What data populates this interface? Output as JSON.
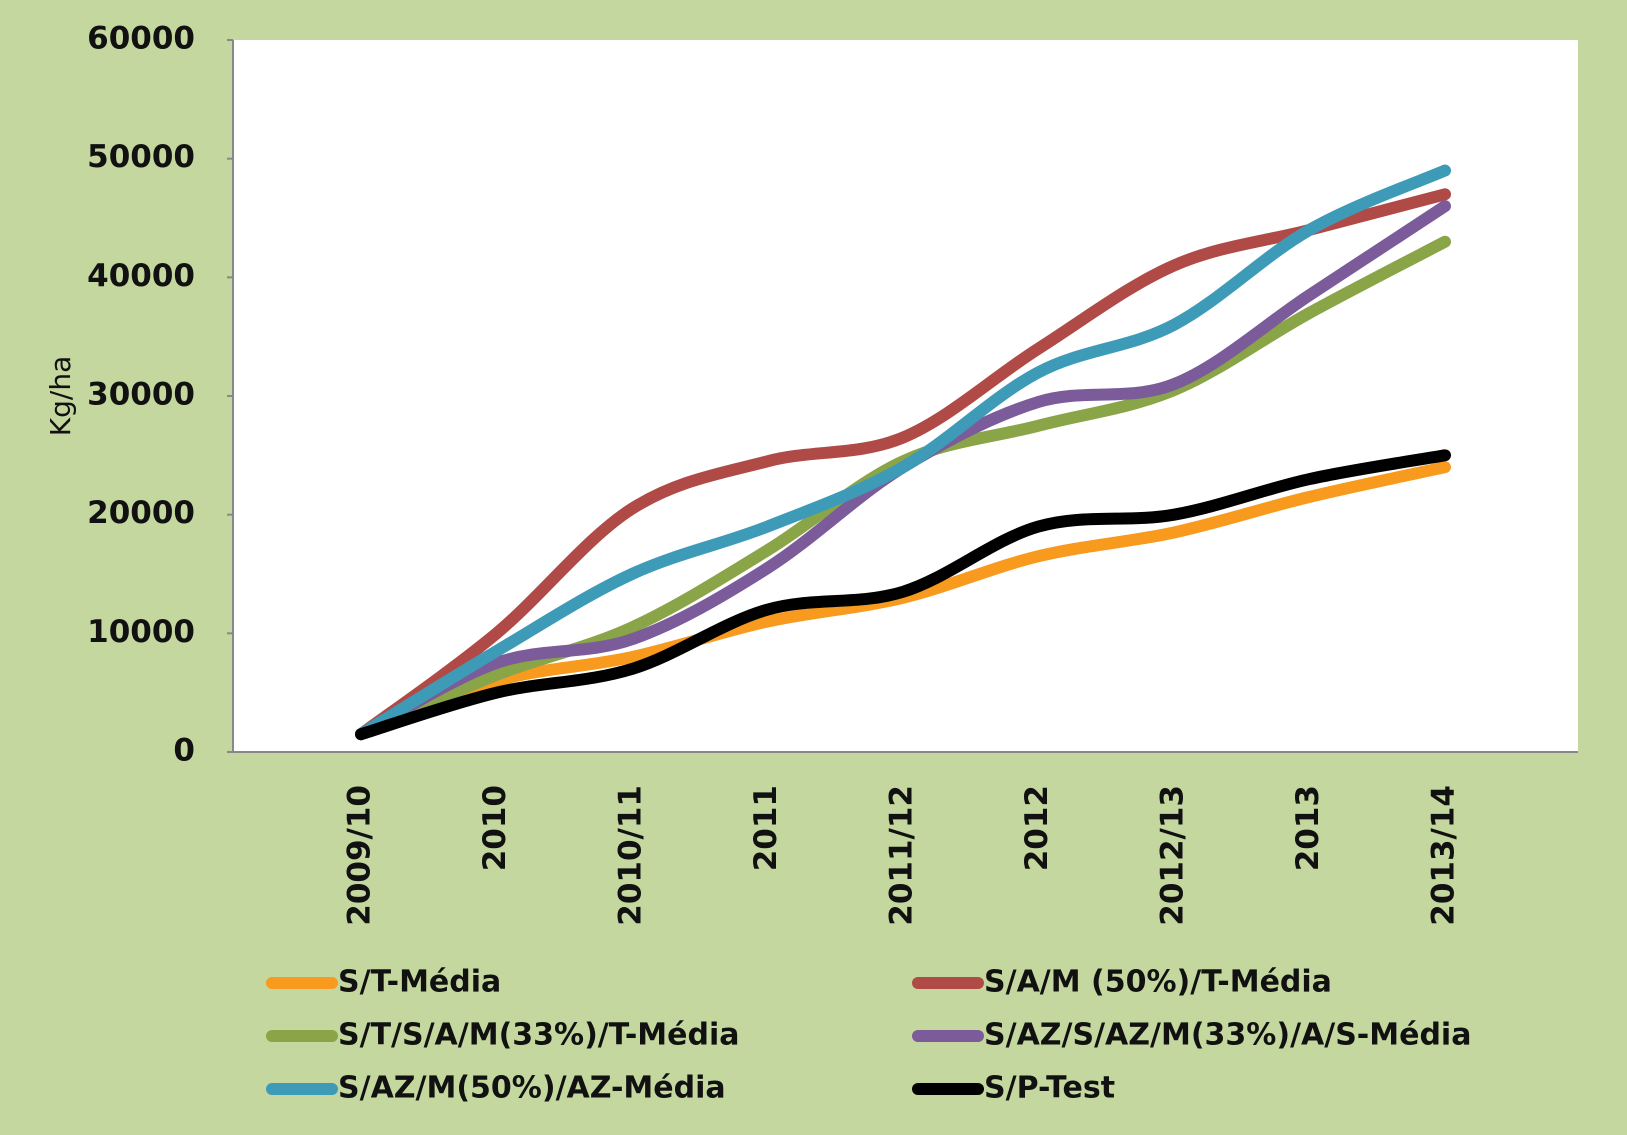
{
  "chart_data": {
    "type": "line",
    "y_label": "Kg/ha",
    "categories": [
      "2009/10",
      "2010",
      "2010/11",
      "2011",
      "2011/12",
      "2012",
      "2012/13",
      "2013",
      "2013/14"
    ],
    "series": [
      {
        "name": "S/T-Média",
        "color": "#f79a1e",
        "values": [
          1500,
          6000,
          8000,
          11000,
          13000,
          16500,
          18500,
          21500,
          24000
        ]
      },
      {
        "name": "S/A/M (50%)/T-Média",
        "color": "#b04a46",
        "values": [
          1500,
          10000,
          20500,
          24500,
          26500,
          34000,
          41000,
          44000,
          47000
        ]
      },
      {
        "name": "S/T/S/A/M(33%)/T-Média",
        "color": "#8aa548",
        "values": [
          1500,
          6500,
          10500,
          17000,
          24500,
          27500,
          30500,
          37000,
          43000
        ]
      },
      {
        "name": "S/AZ/S/AZ/M(33%)/A/S-Média",
        "color": "#7b5b9a",
        "values": [
          1500,
          7500,
          9500,
          15500,
          24000,
          29500,
          31000,
          38500,
          46000
        ]
      },
      {
        "name": "S/AZ/M(50%)/AZ-Média",
        "color": "#3e9bb8",
        "values": [
          1500,
          8500,
          15000,
          19000,
          24000,
          32000,
          36000,
          44000,
          49000
        ]
      },
      {
        "name": "S/P-Test",
        "color": "#000000",
        "values": [
          1500,
          5000,
          7000,
          12000,
          13500,
          19000,
          20000,
          23000,
          25000
        ]
      }
    ],
    "ylim": [
      0,
      60000
    ],
    "yticks": [
      0,
      10000,
      20000,
      30000,
      40000,
      50000,
      60000
    ],
    "legend": "bottom"
  }
}
